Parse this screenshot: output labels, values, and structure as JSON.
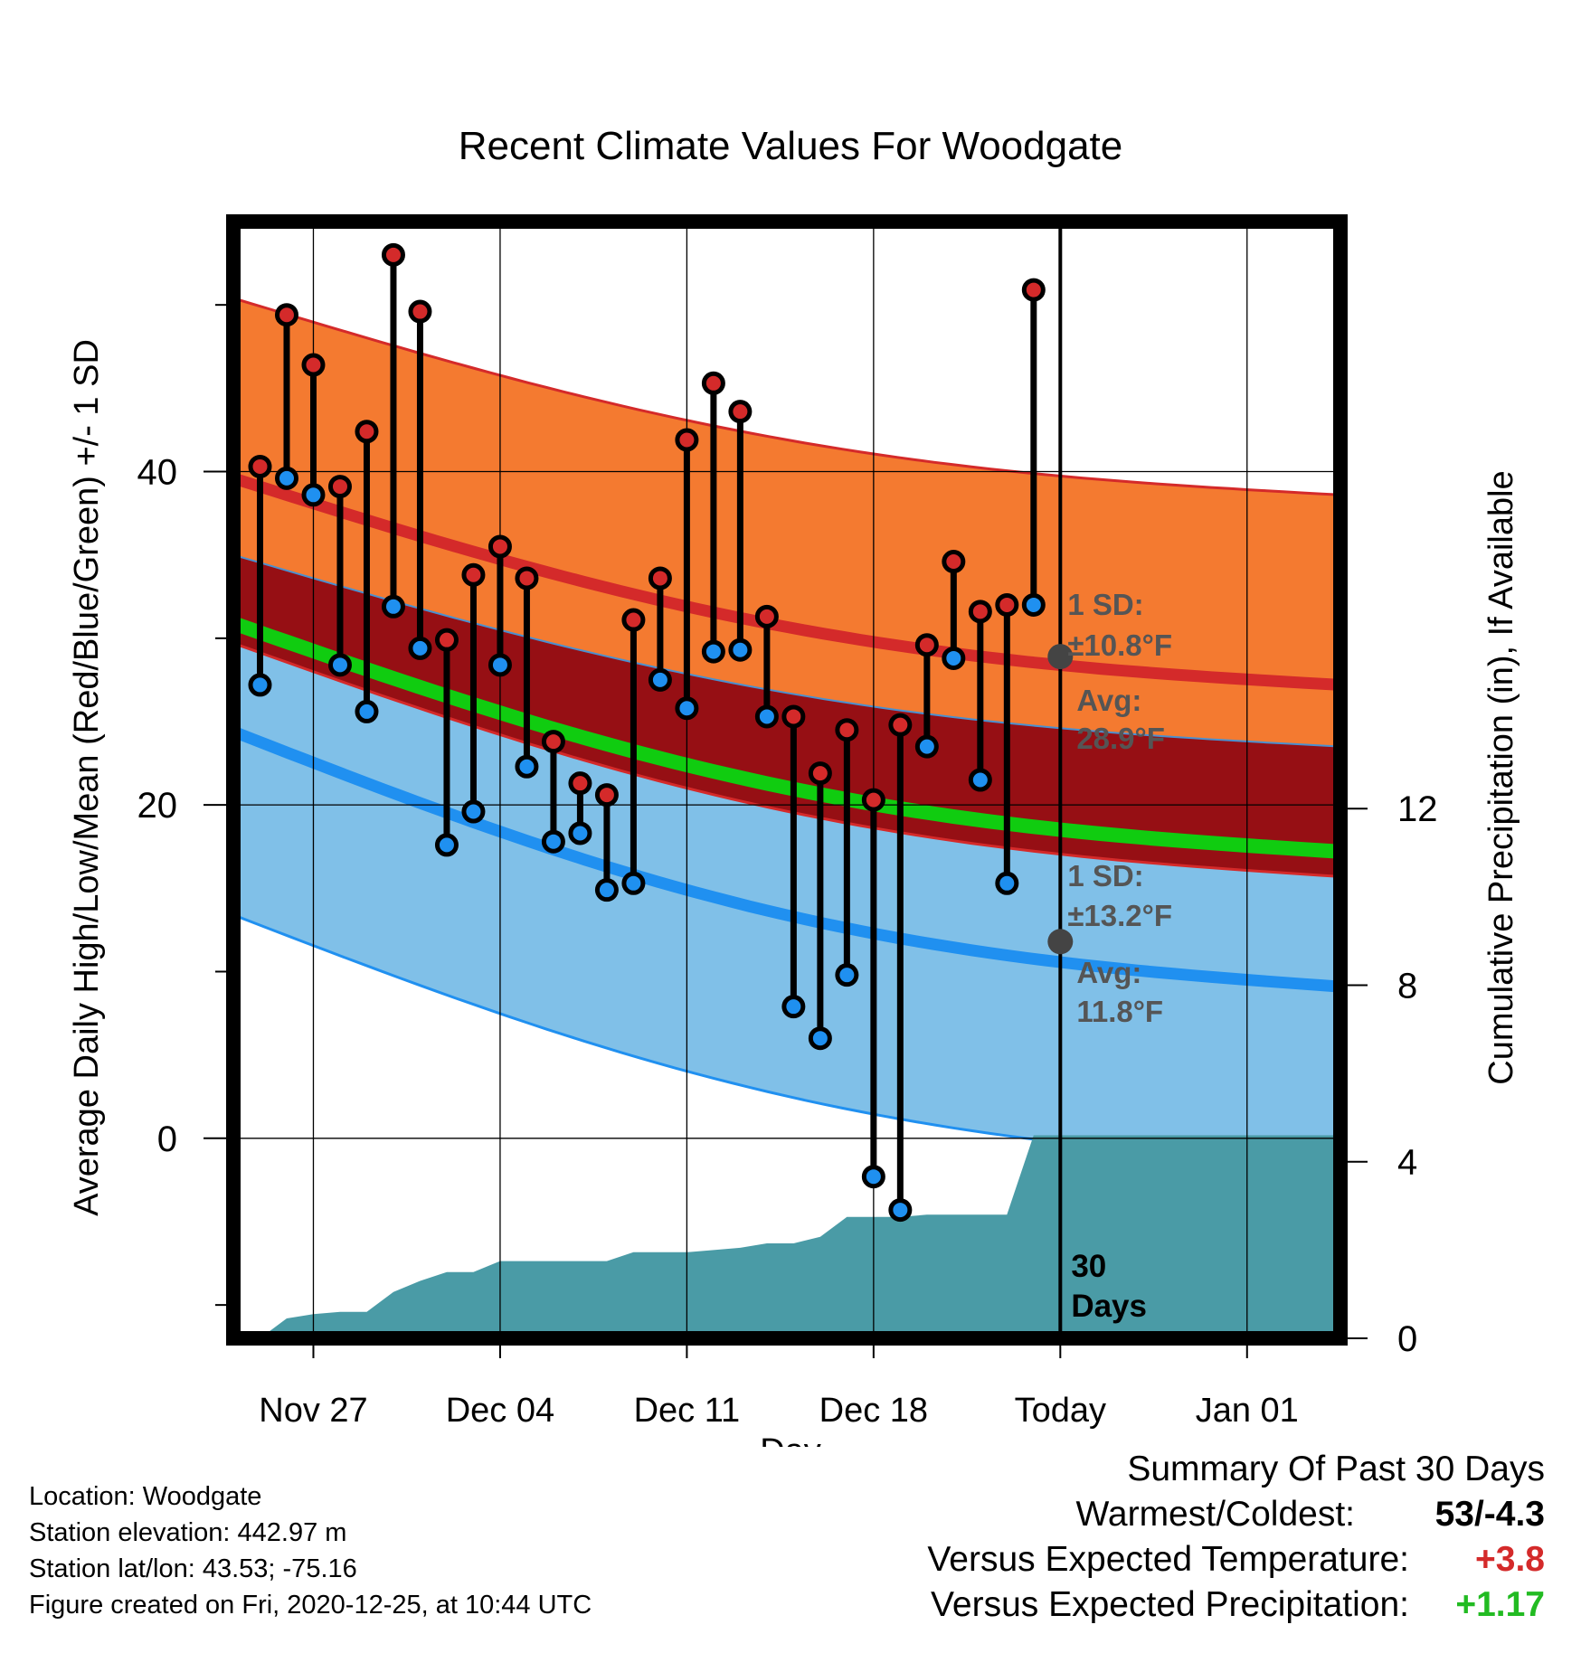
{
  "chart_data": {
    "type": "line",
    "title": "Recent Climate Values For Woodgate",
    "xlabel": "Day",
    "ylabel": "Average Daily High/Low/Mean (Red/Blue/Green) +/- 1 SD",
    "y2label": "Cumulative Precipitation (in), If Available",
    "x_tick_labels": [
      "Nov 27",
      "Dec 04",
      "Dec 11",
      "Dec 18",
      "Today",
      "Jan 01"
    ],
    "x_tick_days": [
      0,
      7,
      14,
      21,
      28,
      35
    ],
    "xlim": [
      -3,
      38.5
    ],
    "ylim": [
      -12,
      55
    ],
    "y_ticks": [
      0,
      20,
      40
    ],
    "y2_ticks": [
      0,
      4,
      8,
      12
    ],
    "y2lim": [
      0,
      25.3
    ],
    "grid": true,
    "today_day": 28,
    "days_label": "30\nDays",
    "days": [
      -2,
      -1,
      0,
      1,
      2,
      3,
      4,
      5,
      6,
      7,
      8,
      9,
      10,
      11,
      12,
      13,
      14,
      15,
      16,
      17,
      18,
      19,
      20,
      21,
      22,
      23,
      24,
      25,
      26,
      27
    ],
    "series": [
      {
        "name": "High",
        "values": [
          40.3,
          49.4,
          46.4,
          39.1,
          42.4,
          53.0,
          49.6,
          29.9,
          33.8,
          35.5,
          33.6,
          23.8,
          21.3,
          20.6,
          31.1,
          33.6,
          41.9,
          45.3,
          43.6,
          31.3,
          25.3,
          21.9,
          24.5,
          20.3,
          24.8,
          29.6,
          34.6,
          31.6,
          32.0,
          50.9
        ]
      },
      {
        "name": "Low",
        "values": [
          27.2,
          39.6,
          38.6,
          28.4,
          25.6,
          31.9,
          29.4,
          17.6,
          19.6,
          28.4,
          22.3,
          17.8,
          18.3,
          14.9,
          15.3,
          27.5,
          25.8,
          29.2,
          29.3,
          25.3,
          7.9,
          6.0,
          9.8,
          -2.3,
          -4.3,
          23.5,
          28.8,
          21.5,
          15.3,
          32.0
        ]
      }
    ],
    "normals": {
      "days": [
        -3,
        38.5
      ],
      "high_mean": [
        39.6,
        27.2
      ],
      "high_upper": [
        50.4,
        38.6
      ],
      "high_lower": [
        35.0,
        23.5
      ],
      "mean": [
        30.9,
        17.2
      ],
      "mean_lower": [
        29.7,
        15.7
      ],
      "low_mean": [
        24.4,
        9.1
      ],
      "low_lower": [
        13.4,
        -1.7
      ]
    },
    "precip_days": [
      -3,
      -2,
      -1,
      0,
      1,
      2,
      3,
      4,
      5,
      6,
      7,
      8,
      9,
      10,
      11,
      12,
      13,
      14,
      15,
      16,
      17,
      18,
      19,
      20,
      21,
      22,
      23,
      24,
      25,
      26,
      27,
      28,
      38.5
    ],
    "precip_values": [
      0,
      0,
      0.45,
      0.55,
      0.6,
      0.6,
      1.05,
      1.3,
      1.5,
      1.5,
      1.75,
      1.75,
      1.75,
      1.75,
      1.75,
      1.95,
      1.95,
      1.95,
      2.0,
      2.05,
      2.15,
      2.15,
      2.3,
      2.75,
      2.75,
      2.75,
      2.8,
      2.8,
      2.8,
      2.8,
      4.6,
      4.6,
      4.6
    ],
    "annotations": {
      "high_sd": "1 SD:",
      "high_sd_val": "±10.8°F",
      "high_avg": "Avg:",
      "high_avg_val": "28.9°F",
      "low_sd": "1 SD:",
      "low_sd_val": "±13.2°F",
      "low_avg": "Avg:",
      "low_avg_val": "11.8°F",
      "high_avg_y": 28.9,
      "low_avg_y": 11.8
    },
    "colors": {
      "high_band": "#f47a30",
      "high_line": "#d42a2a",
      "mid_band": "#960f14",
      "mean_line": "#10cc10",
      "low_band": "#80c0e8",
      "low_line": "#2090f0",
      "precip": "#4a9ba6",
      "high_marker": "#d42a2a",
      "low_marker": "#1f90f0",
      "annotation": "#555555"
    }
  },
  "footer": {
    "location": "Location: Woodgate",
    "elevation": "Station elevation: 442.97 m",
    "latlon": "Station lat/lon: 43.53; -75.16",
    "created": "Figure created on Fri, 2020-12-25, at 10:44 UTC"
  },
  "summary": {
    "heading": "Summary Of Past 30 Days",
    "warmest_label": "Warmest/Coldest:",
    "warmest_value": "53/-4.3",
    "temp_label": "Versus Expected Temperature:",
    "temp_value": "+3.8",
    "temp_color": "#d42a2a",
    "precip_label": "Versus Expected Precipitation:",
    "precip_value": "+1.17",
    "precip_color": "#22bb22"
  }
}
